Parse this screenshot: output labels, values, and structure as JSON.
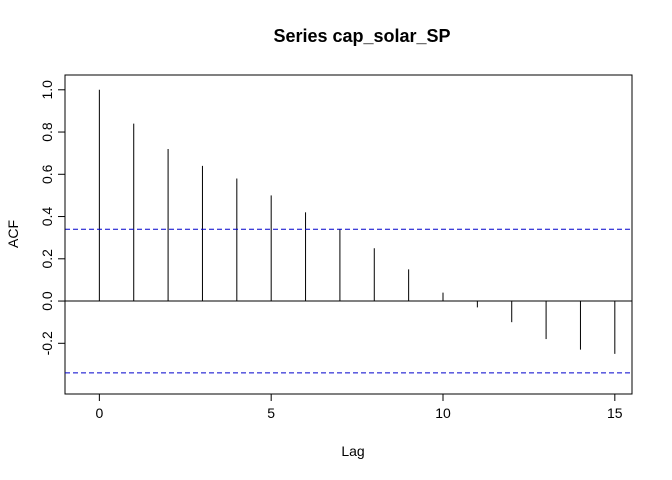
{
  "chart_data": {
    "type": "bar",
    "title": "Series  cap_solar_SP",
    "xlabel": "Lag",
    "ylabel": "ACF",
    "x_ticks": [
      "0",
      "5",
      "10",
      "15"
    ],
    "y_ticks": [
      "-0.2",
      "0.0",
      "0.2",
      "0.4",
      "0.6",
      "0.8",
      "1.0"
    ],
    "xlim": [
      -1,
      15.5
    ],
    "ylim": [
      -0.44,
      1.07
    ],
    "series": [
      {
        "x": [
          0,
          1,
          2,
          3,
          4,
          5,
          6,
          7,
          8,
          9,
          10,
          11,
          12,
          13,
          14,
          15
        ],
        "values": [
          1.0,
          0.84,
          0.72,
          0.64,
          0.58,
          0.5,
          0.42,
          0.34,
          0.25,
          0.15,
          0.04,
          -0.03,
          -0.1,
          -0.18,
          -0.23,
          -0.25
        ]
      }
    ],
    "confidence_bound": 0.34,
    "colors": {
      "lines": "#000000",
      "bounds": "#0000cc"
    },
    "grid": false
  }
}
